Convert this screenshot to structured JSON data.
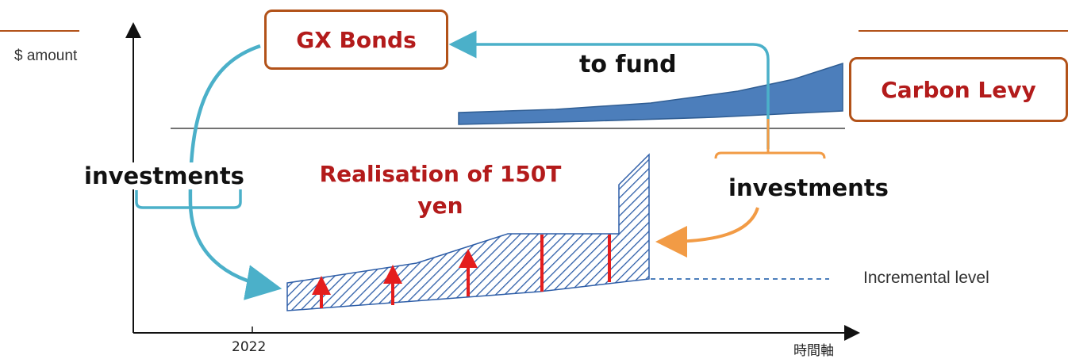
{
  "labels": {
    "y_axis": "$ amount",
    "x_tick_year": "2022",
    "x_axis": "時間軸",
    "gx_bonds": "GX Bonds",
    "to_fund": "to fund",
    "carbon_levy": "Carbon Levy",
    "investments_left": "investments",
    "investments_right": "investments",
    "realisation": "Realisation of 150T yen",
    "incremental": "Incremental level"
  },
  "colors": {
    "frame_accent": "#b25219",
    "box_text_red": "#b31b1b",
    "left_arrow": "#4bb0c9",
    "right_arrow": "#f29b45",
    "levy_fill": "#4c7ebb",
    "levy_stroke": "#2f5d93",
    "hatch": "#2e5ea8",
    "up_arrows": "#e41d1d",
    "axis": "#111111"
  },
  "icons": {
    "up_arrow": "arrow-up-icon",
    "flow_arrow": "flow-arrow-icon"
  }
}
